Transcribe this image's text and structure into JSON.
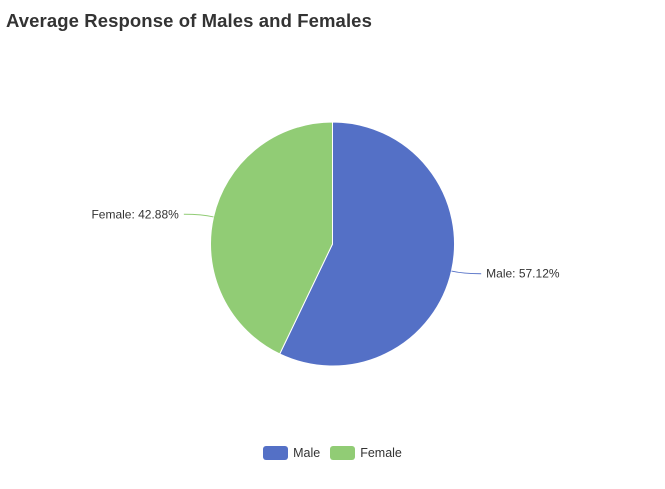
{
  "chart_data": {
    "type": "pie",
    "title": "Average Response of Males and Females",
    "slices": [
      {
        "name": "Male",
        "value": 57.12,
        "label": "Male: 57.12%",
        "color": "#5470c6"
      },
      {
        "name": "Female",
        "value": 42.88,
        "label": "Female: 42.88%",
        "color": "#91cc75"
      }
    ],
    "legend": {
      "position": "bottom",
      "items": [
        "Male",
        "Female"
      ]
    }
  }
}
